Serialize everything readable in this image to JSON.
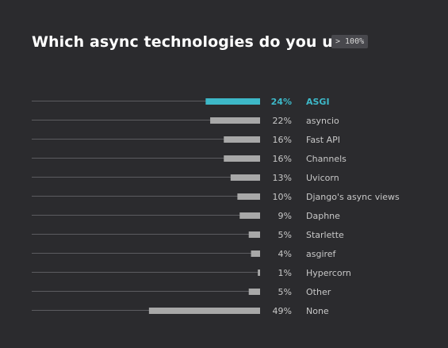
{
  "header": {
    "title": "Which async technologies do you use?",
    "badge": "> 100%"
  },
  "colors": {
    "background": "#2b2b2e",
    "highlight": "#3db8c8",
    "bar": "#a8a8a8",
    "baseline": "#5c5c60",
    "text": "#c8c8c8",
    "highlight_text": "#3db8c8"
  },
  "chart_data": {
    "type": "bar",
    "orientation": "horizontal",
    "title": "Which async technologies do you use?",
    "xlim": [
      0,
      100
    ],
    "highlight": "ASGI",
    "categories": [
      "ASGI",
      "asyncio",
      "Fast API",
      "Channels",
      "Uvicorn",
      "Django's async views",
      "Daphne",
      "Starlette",
      "asgiref",
      "Hypercorn",
      "Other",
      "None"
    ],
    "values": [
      24,
      22,
      16,
      16,
      13,
      10,
      9,
      5,
      4,
      1,
      5,
      49
    ],
    "value_labels": [
      "24%",
      "22%",
      "16%",
      "16%",
      "13%",
      "10%",
      "9%",
      "5%",
      "4%",
      "1%",
      "5%",
      "49%"
    ]
  }
}
